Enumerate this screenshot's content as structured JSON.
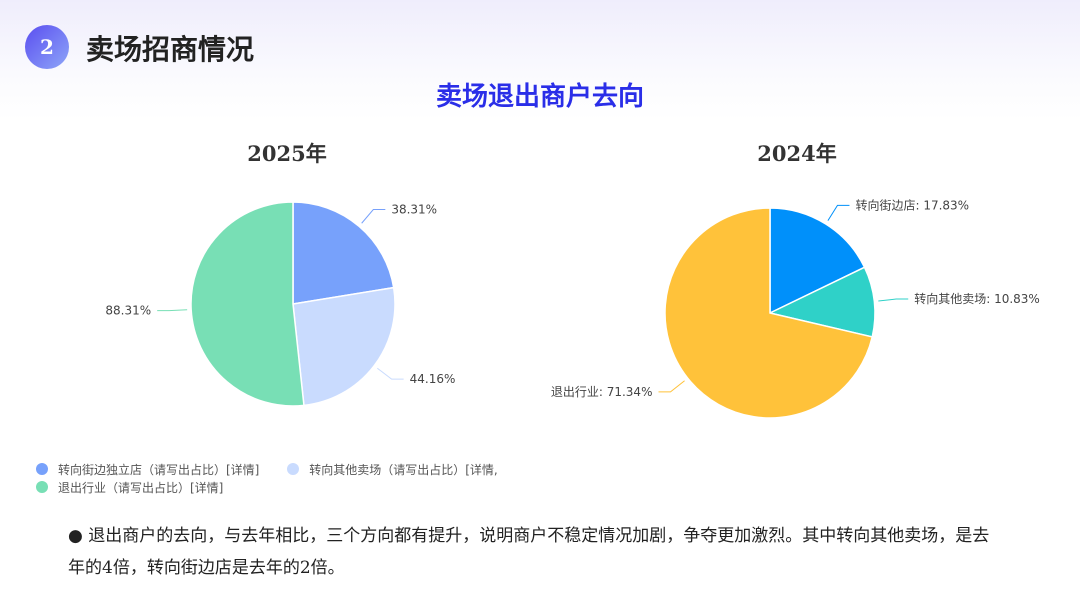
{
  "header": {
    "number": "2",
    "title": "卖场招商情况"
  },
  "chart_data": [
    {
      "type": "pie",
      "title": "卖场退出商户去向",
      "subtitle": "2025年",
      "slices": [
        {
          "label": "转向街边独立店（请写出占比）[详情]",
          "value": 38.31,
          "display": "38.31%",
          "color": "#77a1fb"
        },
        {
          "label": "转向其他卖场（请写出占比）[详情,",
          "value": 44.16,
          "display": "44.16%",
          "color": "#c9dbfe"
        },
        {
          "label": "退出行业（请写出占比）[详情]",
          "value": 88.31,
          "display": "88.31%",
          "color": "#78dfb5"
        }
      ],
      "legend": "bottom-left"
    },
    {
      "type": "pie",
      "subtitle": "2024年",
      "slices": [
        {
          "label": "转向街边店",
          "value": 17.83,
          "display": "转向街边店: 17.83%",
          "color": "#0090fa"
        },
        {
          "label": "转向其他卖场",
          "value": 10.83,
          "display": "转向其他卖场: 10.83%",
          "color": "#2fd1c8"
        },
        {
          "label": "退出行业",
          "value": 71.34,
          "display": "退出行业: 71.34%",
          "color": "#ffc23a"
        }
      ]
    }
  ],
  "note": "● 退出商户的去向，与去年相比，三个方向都有提升，说明商户不稳定情况加剧，争夺更加激烈。其中转向其他卖场，是去年的4倍，转向街边店是去年的2倍。"
}
